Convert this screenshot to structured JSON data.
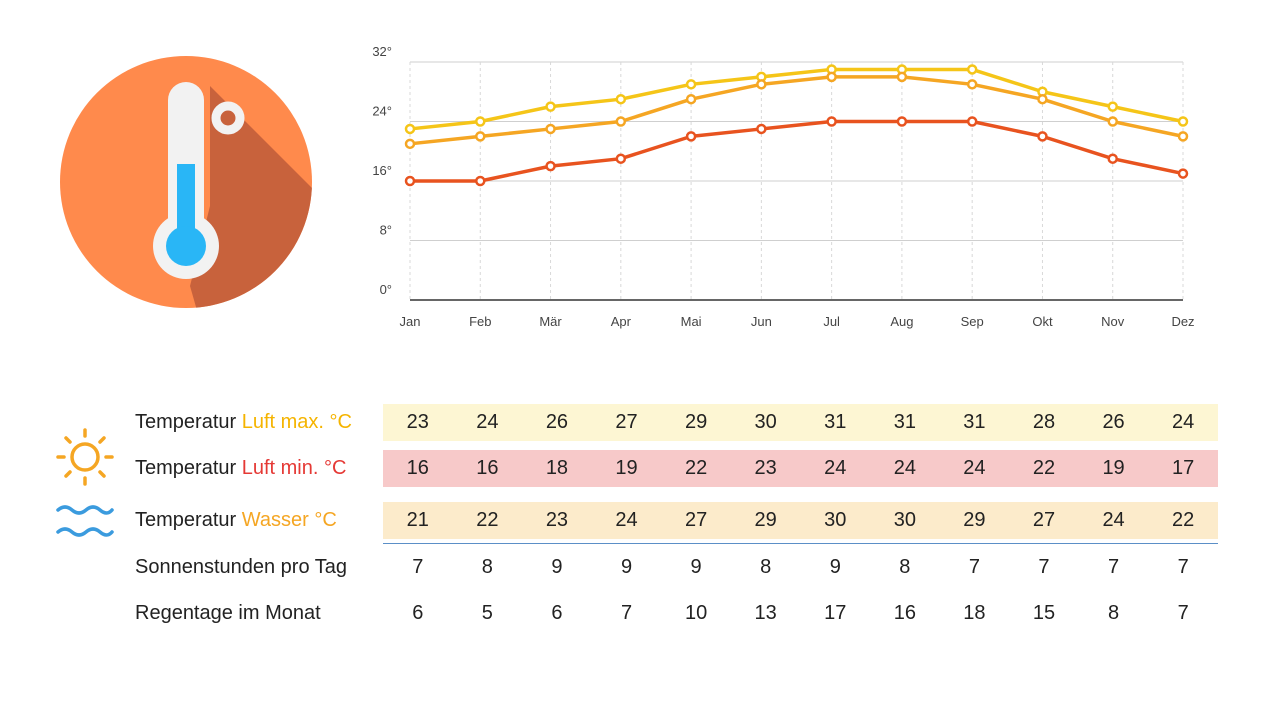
{
  "colors": {
    "air_max": "#f5c518",
    "air_min": "#e8531f",
    "water": "#f5a623",
    "band_max": "#fdf6d3",
    "band_min": "#f7c9c9",
    "band_water": "#fcebcb",
    "thermo_circle": "#ff8a4c",
    "thermo_shadow": "#c8623c",
    "mercury": "#29b6f6"
  },
  "icons": {
    "thermometer": "thermometer-icon",
    "sun": "sun-icon",
    "water": "water-waves-icon"
  },
  "chart_data": {
    "type": "line",
    "x": [
      "Jan",
      "Feb",
      "Mär",
      "Apr",
      "Mai",
      "Jun",
      "Jul",
      "Aug",
      "Sep",
      "Okt",
      "Nov",
      "Dez"
    ],
    "y_ticks": [
      "0°",
      "8°",
      "16°",
      "24°",
      "32°"
    ],
    "ylim": [
      0,
      32
    ],
    "grid": true,
    "series": [
      {
        "key": "air_max",
        "values": [
          23,
          24,
          26,
          27,
          29,
          30,
          31,
          31,
          31,
          28,
          26,
          24
        ]
      },
      {
        "key": "water",
        "values": [
          21,
          22,
          23,
          24,
          27,
          29,
          30,
          30,
          29,
          27,
          24,
          22
        ]
      },
      {
        "key": "air_min",
        "values": [
          16,
          16,
          18,
          19,
          22,
          23,
          24,
          24,
          24,
          22,
          19,
          17
        ]
      }
    ]
  },
  "table": {
    "rows": [
      {
        "prefix": "Temperatur ",
        "highlight": "Luft max. °C",
        "values": [
          "23",
          "24",
          "26",
          "27",
          "29",
          "30",
          "31",
          "31",
          "31",
          "28",
          "26",
          "24"
        ]
      },
      {
        "prefix": "Temperatur ",
        "highlight": "Luft min. °C",
        "values": [
          "16",
          "16",
          "18",
          "19",
          "22",
          "23",
          "24",
          "24",
          "24",
          "22",
          "19",
          "17"
        ]
      },
      {
        "prefix": "Temperatur ",
        "highlight": "Wasser °C",
        "values": [
          "21",
          "22",
          "23",
          "24",
          "27",
          "29",
          "30",
          "30",
          "29",
          "27",
          "24",
          "22"
        ]
      },
      {
        "prefix": "Sonnenstunden pro Tag",
        "highlight": "",
        "values": [
          "7",
          "8",
          "9",
          "9",
          "9",
          "8",
          "9",
          "8",
          "7",
          "7",
          "7",
          "7"
        ]
      },
      {
        "prefix": "Regentage im Monat",
        "highlight": "",
        "values": [
          "6",
          "5",
          "6",
          "7",
          "10",
          "13",
          "17",
          "16",
          "18",
          "15",
          "8",
          "7"
        ]
      }
    ]
  }
}
